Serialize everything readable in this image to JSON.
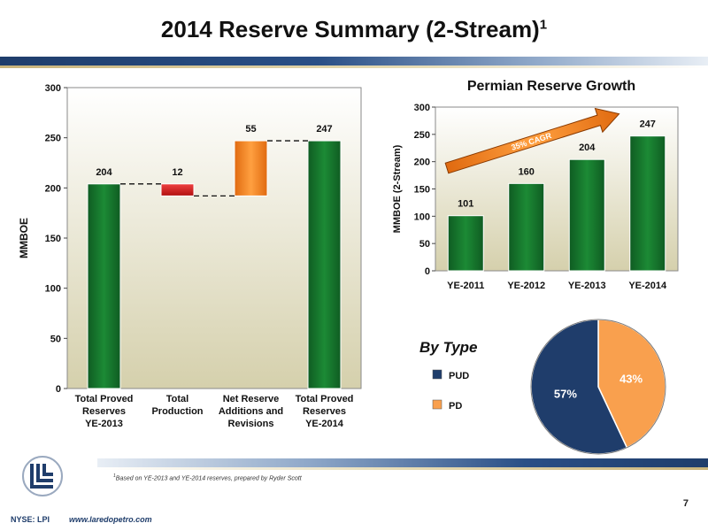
{
  "slide": {
    "title": "2014 Reserve Summary (2-Stream)",
    "title_sup": "1",
    "footnote_sup": "1",
    "footnote": "Based on YE-2013 and YE-2014 reserves, prepared by Ryder Scott",
    "page_number": "7",
    "ticker": "NYSE: LPI",
    "website": "www.laredopetro.com",
    "colors": {
      "green": "#157a2e",
      "red": "#d21a1a",
      "orange": "#f07d1a",
      "navy": "#1f3d6b",
      "pie_orange": "#f9a04e",
      "plot_bg": "#d8d4b4"
    },
    "logo_icon": "laredo-logo-icon"
  },
  "chart_data": [
    {
      "type": "bar",
      "subtype": "waterfall",
      "title": "",
      "ylabel": "MMBOE",
      "xlabel": "",
      "ylim": [
        0,
        300
      ],
      "yticks": [
        0,
        50,
        100,
        150,
        200,
        250,
        300
      ],
      "categories": [
        "Total Proved Reserves YE-2013",
        "Total Production",
        "Net Reserve Additions and Revisions",
        "Total Proved Reserves YE-2014"
      ],
      "category_lines": [
        [
          "Total Proved",
          "Reserves",
          "YE-2013"
        ],
        [
          "Total",
          "Production"
        ],
        [
          "Net Reserve",
          "Additions and",
          "Revisions"
        ],
        [
          "Total Proved",
          "Reserves",
          "YE-2014"
        ]
      ],
      "bars": [
        {
          "label": "204",
          "start": 0,
          "end": 204,
          "color": "#157a2e"
        },
        {
          "label": "12",
          "start": 192,
          "end": 204,
          "color": "#d21a1a"
        },
        {
          "label": "55",
          "start": 192,
          "end": 247,
          "color": "#f07d1a"
        },
        {
          "label": "247",
          "start": 0,
          "end": 247,
          "color": "#157a2e"
        }
      ],
      "grid": false,
      "legend": "none"
    },
    {
      "type": "bar",
      "title": "Permian Reserve Growth",
      "ylabel": "MMBOE (2-Stream)",
      "xlabel": "",
      "ylim": [
        0,
        300
      ],
      "yticks": [
        0,
        50,
        100,
        150,
        200,
        250,
        300
      ],
      "categories": [
        "YE-2011",
        "YE-2012",
        "YE-2013",
        "YE-2014"
      ],
      "values": [
        101,
        160,
        204,
        247
      ],
      "value_labels": [
        "101",
        "160",
        "204",
        "247"
      ],
      "annotation": "35% CAGR",
      "grid": false,
      "legend": "none"
    },
    {
      "type": "pie",
      "title": "By Type",
      "slices": [
        {
          "name": "PUD",
          "value": 57,
          "label": "57%",
          "color": "#1f3d6b"
        },
        {
          "name": "PD",
          "value": 43,
          "label": "43%",
          "color": "#f9a04e"
        }
      ],
      "legend": "left"
    }
  ]
}
